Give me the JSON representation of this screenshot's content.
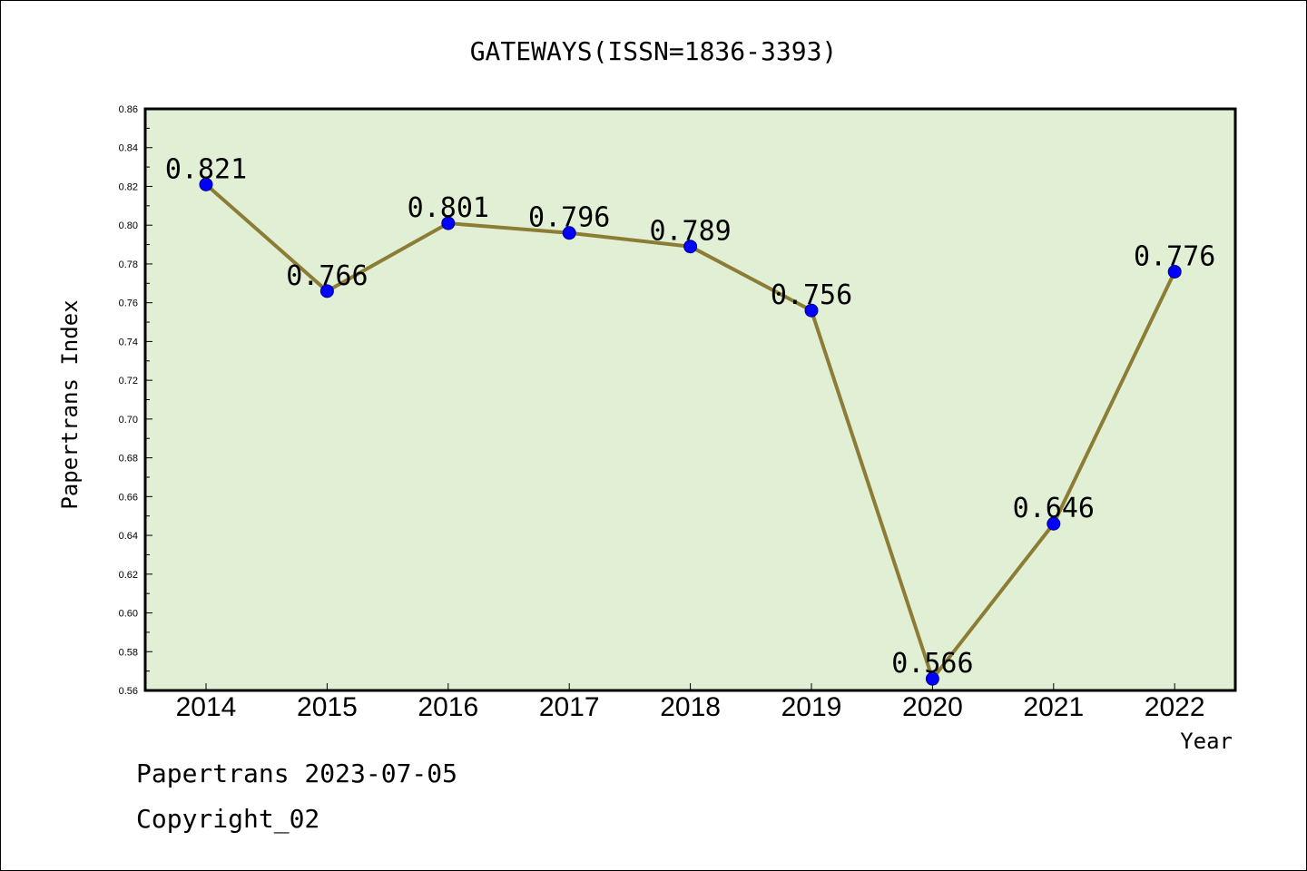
{
  "chart_data": {
    "type": "line",
    "title": "GATEWAYS(ISSN=1836-3393)",
    "xlabel": "Year",
    "ylabel": "Papertrans Index",
    "categories": [
      "2014",
      "2015",
      "2016",
      "2017",
      "2018",
      "2019",
      "2020",
      "2021",
      "2022"
    ],
    "values": [
      0.821,
      0.766,
      0.801,
      0.796,
      0.789,
      0.756,
      0.566,
      0.646,
      0.776
    ],
    "data_labels": [
      "0.821",
      "0.766",
      "0.801",
      "0.796",
      "0.789",
      "0.756",
      "0.566",
      "0.646",
      "0.776"
    ],
    "ylim": [
      0.56,
      0.86
    ],
    "yticks": [
      "0.56",
      "0.58",
      "0.60",
      "0.62",
      "0.64",
      "0.66",
      "0.68",
      "0.70",
      "0.72",
      "0.74",
      "0.76",
      "0.78",
      "0.80",
      "0.82",
      "0.84",
      "0.86"
    ],
    "grid": false,
    "colors": {
      "plot_background": "#e1efd5",
      "line": "#8b7d35",
      "marker": "#0000ff"
    }
  },
  "footer": {
    "line1": "Papertrans 2023-07-05",
    "line2": "Copyright_02"
  }
}
